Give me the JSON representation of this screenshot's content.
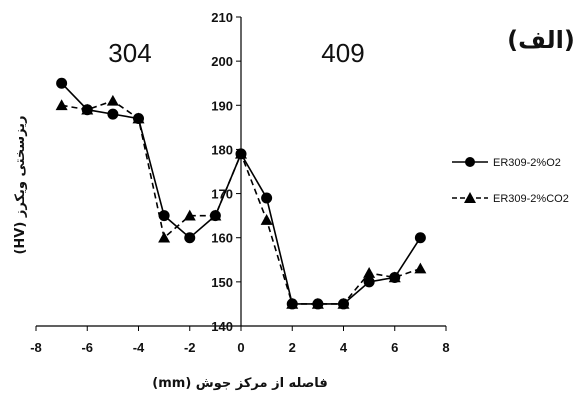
{
  "panel_label": "(الف)",
  "chart_data": {
    "type": "line",
    "xlabel": "فاصله از مرکز جوش (mm)",
    "ylabel": "ریزسختی ویکرز (HV)",
    "xlim": [
      -8,
      8
    ],
    "ylim": [
      140,
      210
    ],
    "xticks": [
      "-8",
      "-6",
      "-4",
      "-2",
      "0",
      "2",
      "4",
      "6",
      "8"
    ],
    "yticks": [
      "140",
      "150",
      "160",
      "170",
      "180",
      "190",
      "200",
      "210"
    ],
    "region_labels": [
      "304",
      "409"
    ],
    "legend_position": "right",
    "grid": false,
    "x": [
      -7,
      -6,
      -5,
      -4,
      -3,
      -2,
      -1,
      0,
      1,
      2,
      3,
      4,
      5,
      6,
      7
    ],
    "series": [
      {
        "name": "ER309-2%O2",
        "marker": "circle",
        "line": "solid",
        "values": [
          195,
          189,
          188,
          187,
          165,
          160,
          165,
          179,
          169,
          145,
          145,
          145,
          150,
          151,
          160
        ]
      },
      {
        "name": "ER309-2%CO2",
        "marker": "triangle",
        "line": "dashed",
        "values": [
          190,
          189,
          191,
          187,
          160,
          165,
          165,
          179,
          164,
          145,
          145,
          145,
          152,
          151,
          153
        ]
      }
    ],
    "colors": {
      "line": "#000000",
      "axis": "#000000"
    }
  }
}
